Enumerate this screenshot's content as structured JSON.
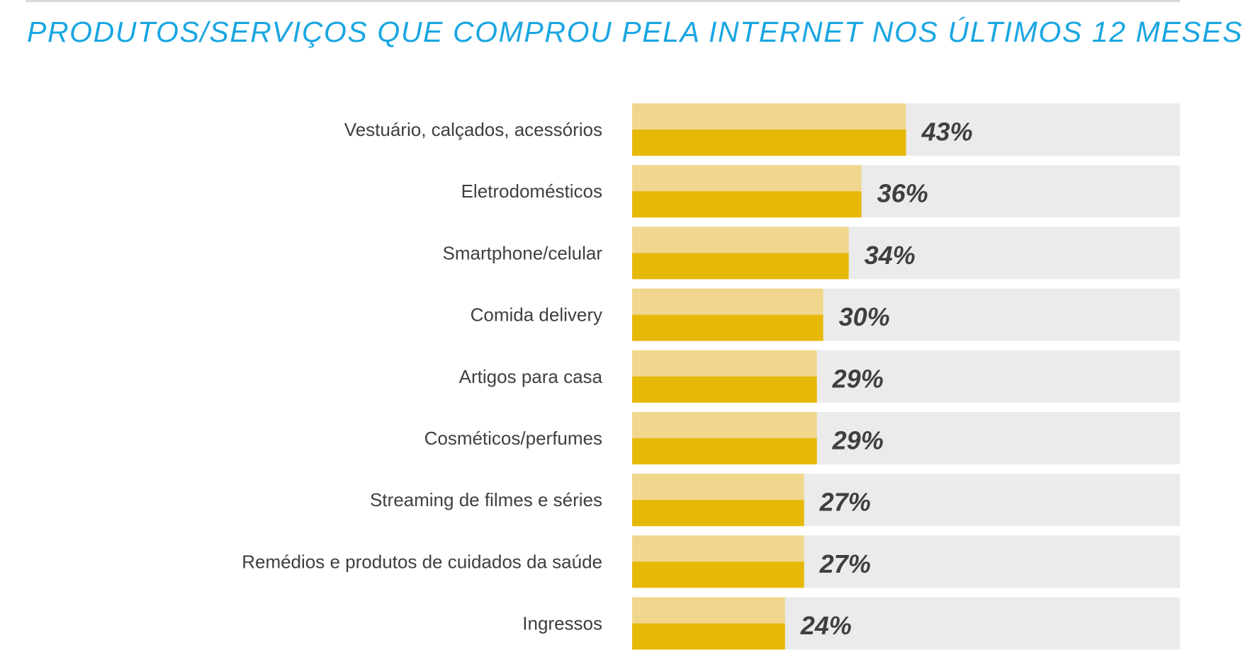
{
  "colors": {
    "title": "#1aa6e2",
    "track": "#ebebeb",
    "bar_light": "#f1d68d",
    "bar_dark": "#e6b807",
    "label": "#3f3f3f",
    "value": "#3f3f3f",
    "rule": "#d9d9d9"
  },
  "chart_data": {
    "type": "bar",
    "orientation": "horizontal",
    "title": "PRODUTOS/SERVIÇOS QUE COMPROU PELA INTERNET NOS ÚLTIMOS 12 MESES",
    "xlabel": "",
    "ylabel": "",
    "xlim": [
      0,
      86
    ],
    "grid": false,
    "categories": [
      "Vestuário, calçados, acessórios",
      "Eletrodomésticos",
      "Smartphone/celular",
      "Comida delivery",
      "Artigos para casa",
      "Cosméticos/perfumes",
      "Streaming de filmes e séries",
      "Remédios e produtos de cuidados da saúde",
      "Ingressos"
    ],
    "values": [
      43,
      36,
      34,
      30,
      29,
      29,
      27,
      27,
      24
    ],
    "value_labels": [
      "43%",
      "36%",
      "34%",
      "30%",
      "29%",
      "29%",
      "27%",
      "27%",
      "24%"
    ]
  }
}
